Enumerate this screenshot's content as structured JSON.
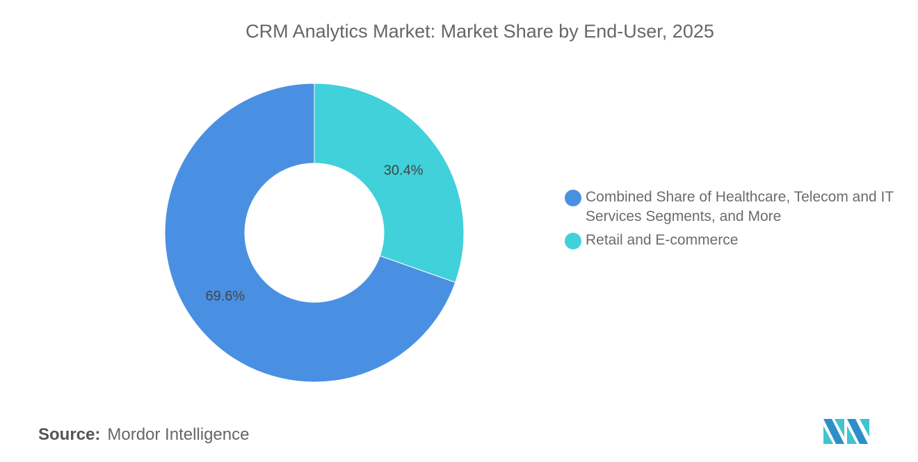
{
  "title": "CRM Analytics Market: Market Share by End-User, 2025",
  "chart_data": {
    "type": "pie",
    "title": "CRM Analytics Market: Market Share by End-User, 2025",
    "donut": true,
    "categories": [
      "Retail and E-commerce",
      "Combined Share of Healthcare, Telecom and IT Services Segments, and More"
    ],
    "values": [
      30.4,
      69.6
    ],
    "data_labels": [
      "30.4%",
      "69.6%"
    ],
    "colors": [
      "#40D1DA",
      "#4A90E2"
    ],
    "legend_position": "right",
    "legend": [
      {
        "label": "Combined Share of Healthcare, Telecom and IT Services Segments, and More",
        "color": "#4A90E2"
      },
      {
        "label": "Retail and E-commerce",
        "color": "#40D1DA"
      }
    ]
  },
  "source": {
    "label": "Source:",
    "value": "Mordor Intelligence"
  },
  "logo": {
    "text": "Mordor Intelligence logo"
  }
}
